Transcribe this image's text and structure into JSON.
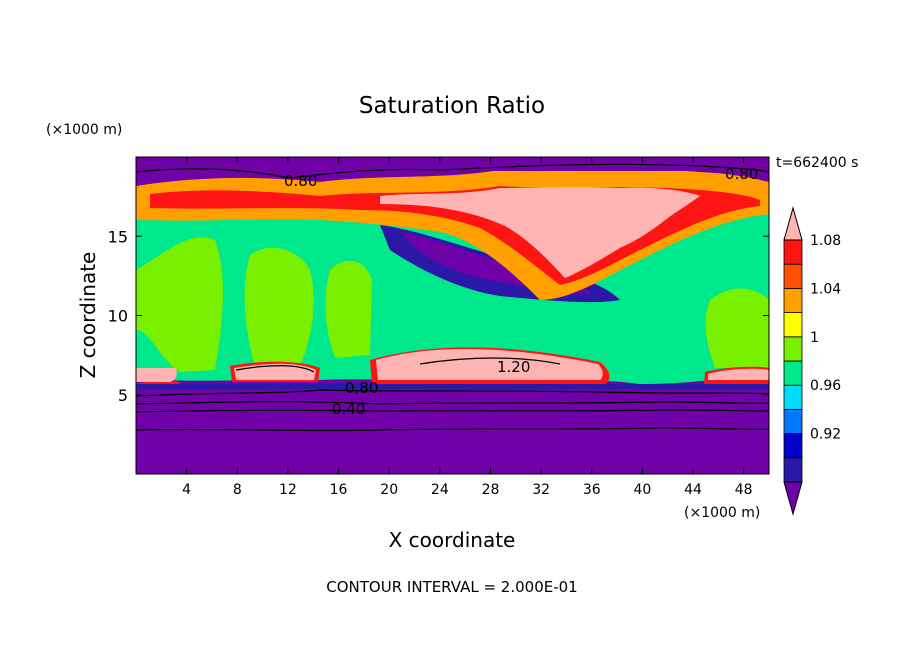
{
  "chart_data": {
    "type": "heatmap",
    "title": "Saturation Ratio",
    "time_label": "t=662400 s",
    "xlabel": "X coordinate",
    "ylabel": "Z coordinate",
    "x_unit": "(×1000 m)",
    "y_unit": "(×1000 m)",
    "xlim": [
      0,
      50
    ],
    "ylim": [
      0,
      20
    ],
    "x_ticks": [
      4,
      8,
      12,
      16,
      20,
      24,
      28,
      32,
      36,
      40,
      44,
      48
    ],
    "y_ticks": [
      5,
      10,
      15
    ],
    "contour_interval_label": "CONTOUR INTERVAL = 2.000E-01",
    "contour_labels": [
      "0.80",
      "0.80",
      "0.80",
      "0.40",
      "1.20"
    ],
    "colorbar": {
      "tick_labels": [
        "0.92",
        "0.96",
        "1",
        "1.04",
        "1.08"
      ],
      "colors": [
        "#7000a8",
        "#2c18a8",
        "#0000c8",
        "#0078ff",
        "#00dcff",
        "#00e88c",
        "#78f000",
        "#ffff00",
        "#ffa000",
        "#ff5000",
        "#ff1414",
        "#ffb4b4"
      ]
    },
    "levels": {
      "dry": "#7000a8",
      "dry_edge": "#2c18a8",
      "mid": "#00e88c",
      "lime": "#78f000",
      "supersat": "#ffb4b4"
    }
  }
}
